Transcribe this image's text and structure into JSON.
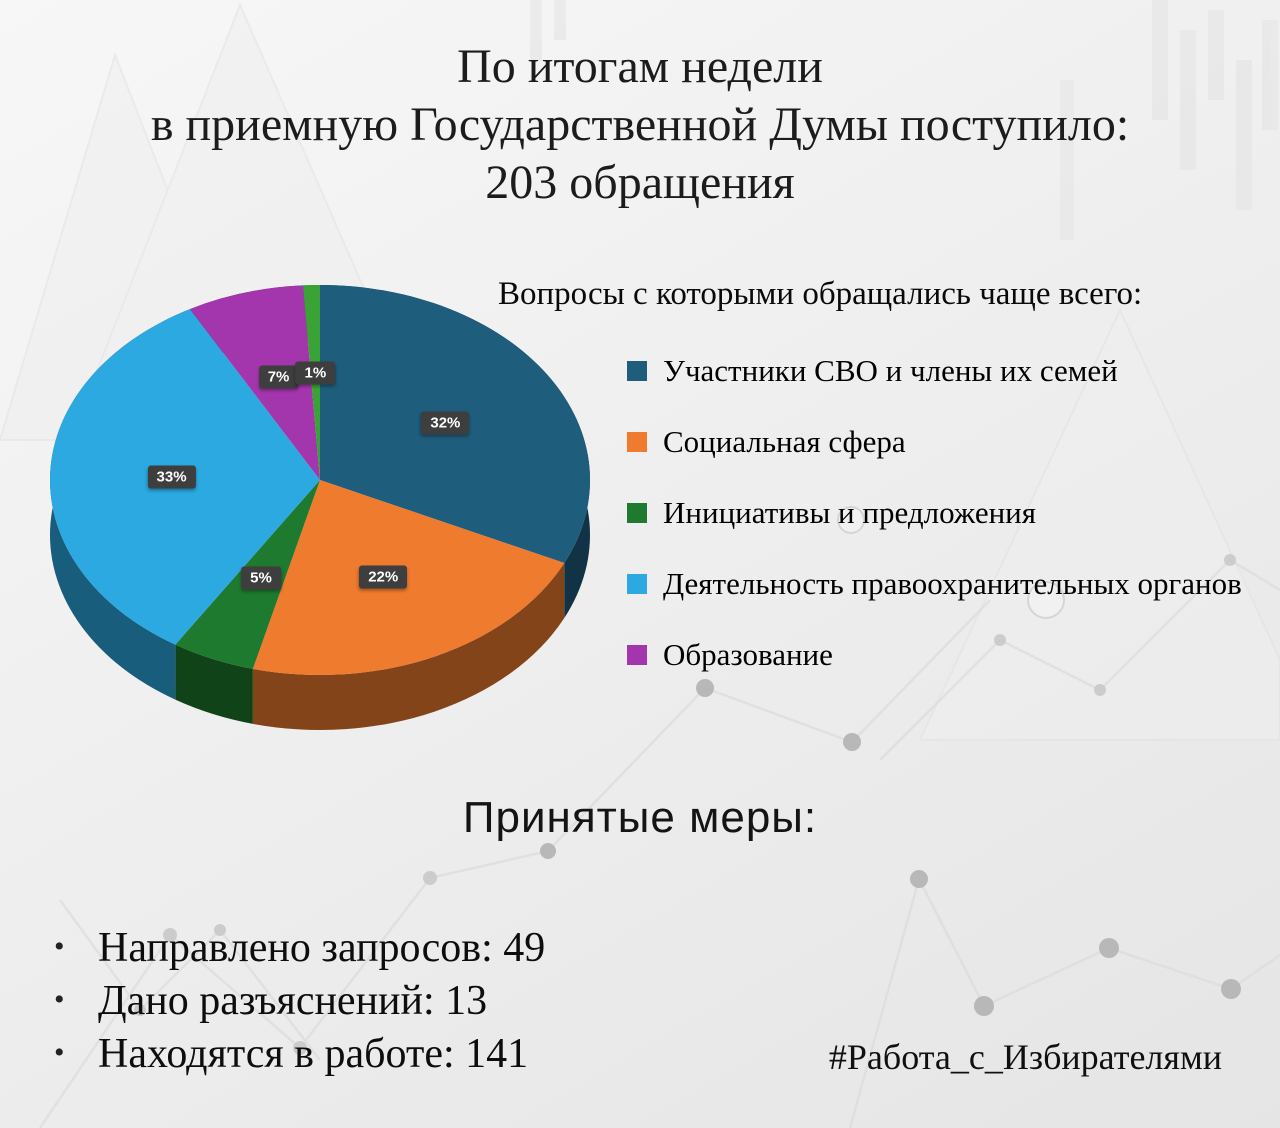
{
  "header": {
    "line1": "По итогам недели",
    "line2": "в приемную Государственной Думы поступило:",
    "line3": "203 обращения"
  },
  "chart_data": {
    "type": "pie",
    "style": "3d",
    "title": "Вопросы с которыми обращались чаще всего:",
    "start_angle_deg": 0,
    "direction": "clockwise",
    "value_suffix": "%",
    "slices": [
      {
        "label": "Участники СВО и члены их семей",
        "value": 32,
        "color": "#1f5d7d",
        "in_legend": true
      },
      {
        "label": "Социальная сфера",
        "value": 22,
        "color": "#ee7b2e",
        "in_legend": true
      },
      {
        "label": "Инициативы и предложения",
        "value": 5,
        "color": "#1e7a2e",
        "in_legend": true
      },
      {
        "label": "Деятельность правоохранительных органов",
        "value": 33,
        "color": "#2ba9e0",
        "in_legend": true
      },
      {
        "label": "Образование",
        "value": 7,
        "color": "#a436ad",
        "in_legend": true
      },
      {
        "label": "",
        "value": 1,
        "color": "#3aa336",
        "in_legend": false
      }
    ]
  },
  "measures": {
    "heading": "Принятые меры:",
    "items": [
      "Направлено запросов: 49",
      "Дано разъяснений: 13",
      "Находятся в работе: 141"
    ]
  },
  "hashtag": "#Работа_с_Избирателями"
}
